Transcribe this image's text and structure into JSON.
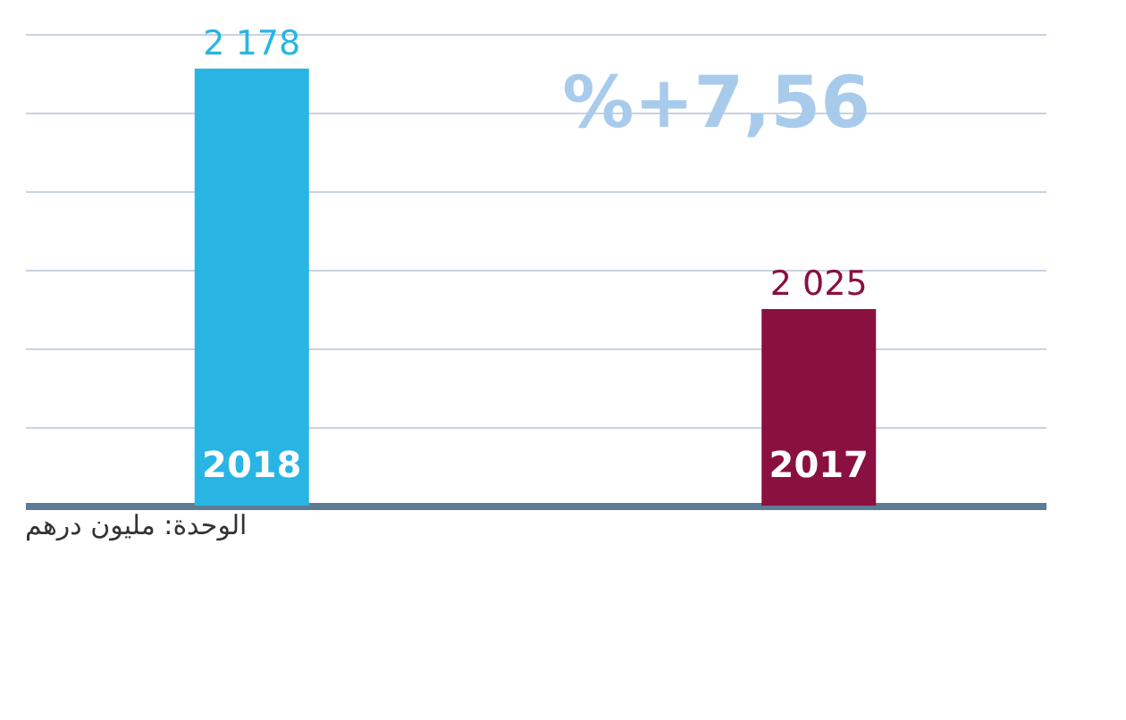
{
  "chart_data": {
    "type": "bar",
    "categories": [
      "2018",
      "2017"
    ],
    "values": [
      2178,
      2025
    ],
    "colors": [
      "#29b5e3",
      "#8a1040"
    ],
    "value_labels": [
      "2 178",
      "2 025"
    ],
    "ylim": [
      1900,
      2200
    ],
    "yticks": [
      {
        "value": 1950,
        "label": null
      },
      {
        "value": 2000,
        "label": null
      },
      {
        "value": 2050,
        "label": null
      },
      {
        "value": 2100,
        "label": null
      },
      {
        "value": 2150,
        "label": null
      },
      {
        "value": 2200,
        "label": null
      }
    ],
    "grid": "y",
    "tick_labels": false,
    "annotations": [
      "%+7,56",
      "الوحدة: مليون درهم"
    ]
  }
}
